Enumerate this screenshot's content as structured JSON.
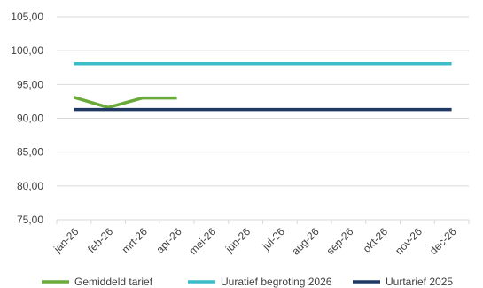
{
  "chart_data": {
    "type": "line",
    "categories": [
      "jan-26",
      "feb-26",
      "mrt-26",
      "apr-26",
      "mei-26",
      "jun-26",
      "jul-26",
      "aug-26",
      "sep-26",
      "okt-26",
      "nov-26",
      "dec-26"
    ],
    "ylim": [
      75,
      105
    ],
    "yticks": [
      "75,00",
      "80,00",
      "85,00",
      "90,00",
      "95,00",
      "100,00",
      "105,00"
    ],
    "grid": true,
    "legend_position": "bottom",
    "series": [
      {
        "name": "Gemiddeld tarief",
        "color": "#6aaa3a",
        "values": [
          93.1,
          91.6,
          93.0,
          93.0,
          null,
          null,
          null,
          null,
          null,
          null,
          null,
          null
        ]
      },
      {
        "name": "Uuratief begroting 2026",
        "color": "#3bbcc8",
        "values": [
          98.1,
          98.1,
          98.1,
          98.1,
          98.1,
          98.1,
          98.1,
          98.1,
          98.1,
          98.1,
          98.1,
          98.1
        ]
      },
      {
        "name": "Uurtarief 2025",
        "color": "#1f3864",
        "values": [
          91.3,
          91.3,
          91.3,
          91.3,
          91.3,
          91.3,
          91.3,
          91.3,
          91.3,
          91.3,
          91.3,
          91.3
        ]
      }
    ]
  }
}
